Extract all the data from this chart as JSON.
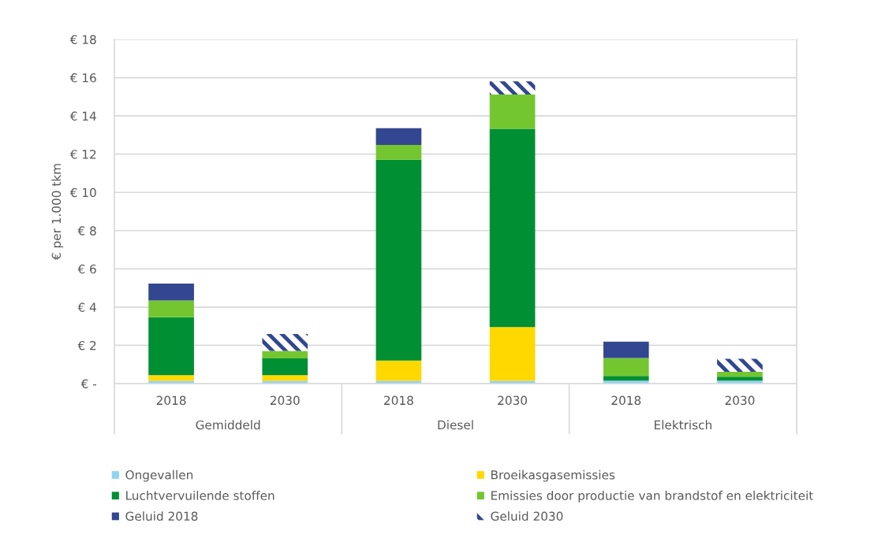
{
  "chart_data": {
    "type": "bar",
    "stacked": true,
    "categories": [
      "2018",
      "2030",
      "2018",
      "2030",
      "2018",
      "2030"
    ],
    "annotations": [
      "Gemiddeld",
      "Diesel",
      "Elektrisch"
    ],
    "ylabel": "€ per 1.000 tkm",
    "ylim": [
      0,
      18
    ],
    "yticks": [
      {
        "value": 0,
        "label": "€ -"
      },
      {
        "value": 2,
        "label": "€ 2"
      },
      {
        "value": 4,
        "label": "€ 4"
      },
      {
        "value": 6,
        "label": "€ 6"
      },
      {
        "value": 8,
        "label": "€ 8"
      },
      {
        "value": 10,
        "label": "€ 10"
      },
      {
        "value": 12,
        "label": "€ 12"
      },
      {
        "value": 14,
        "label": "€ 14"
      },
      {
        "value": 16,
        "label": "€ 16"
      },
      {
        "value": 18,
        "label": "€ 18"
      }
    ],
    "grid": "y",
    "legend": "bottom",
    "series": [
      {
        "name": "Ongevallen",
        "color": "#8fd3f5",
        "values": [
          0.14,
          0.14,
          0.14,
          0.14,
          0.15,
          0.15
        ]
      },
      {
        "name": "Broeikasgasemissies",
        "color": "#ffd800",
        "values": [
          0.3,
          0.3,
          1.06,
          2.82,
          0,
          0
        ]
      },
      {
        "name": "Luchtvervuilende stoffen",
        "color": "#008f32",
        "values": [
          3.03,
          0.88,
          10.51,
          10.36,
          0.25,
          0.21
        ]
      },
      {
        "name": "Emissies door productie van brandstof en elektriciteit",
        "color": "#74c630",
        "values": [
          0.88,
          0.39,
          0.77,
          1.8,
          0.94,
          0.26
        ]
      },
      {
        "name": "Geluid 2018",
        "color": "#334690",
        "values": [
          0.88,
          null,
          0.88,
          null,
          0.85,
          null
        ]
      },
      {
        "name": "Geluid 2030",
        "color": "#334690",
        "values": [
          null,
          0.88,
          null,
          0.69,
          null,
          0.68
        ]
      }
    ]
  }
}
